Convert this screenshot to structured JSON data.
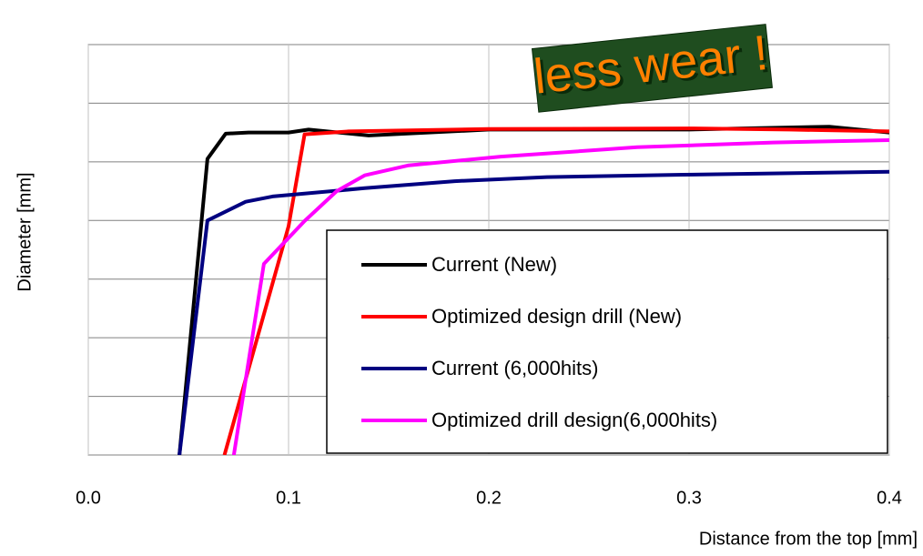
{
  "chart_data": {
    "type": "line",
    "annotation": "less wear !",
    "xlabel": "Distance from the top  [mm]",
    "ylabel": "Diameter [mm]",
    "xlim": [
      0,
      0.4
    ],
    "xticks": [
      {
        "value": 0,
        "label": "0.0"
      },
      0.1,
      0.2,
      0.3,
      0.4
    ],
    "ylim": [
      0,
      7
    ],
    "yticks": [
      0,
      1,
      2,
      3,
      4,
      5,
      6,
      7
    ],
    "grid": true,
    "legend": "lower right",
    "series": [
      {
        "name": "Current (New)",
        "color": "#000000",
        "x": [
          0.0455,
          0.0595,
          0.0686,
          0.08,
          0.1,
          0.11,
          0.14,
          0.2,
          0.3,
          0.37,
          0.4
        ],
        "values": [
          0,
          5.05,
          5.48,
          5.5,
          5.5,
          5.55,
          5.45,
          5.55,
          5.55,
          5.6,
          5.5
        ]
      },
      {
        "name": "Optimized design drill (New)",
        "color": "#ff0000",
        "x": [
          0.068,
          0.1,
          0.108,
          0.13,
          0.2,
          0.3,
          0.35,
          0.4
        ],
        "values": [
          0,
          3.9,
          5.47,
          5.52,
          5.56,
          5.57,
          5.55,
          5.52
        ]
      },
      {
        "name": "Current (6,000hits)",
        "color": "#000080",
        "x": [
          0.0455,
          0.0595,
          0.0786,
          0.092,
          0.138,
          0.183,
          0.229,
          0.297,
          0.4
        ],
        "values": [
          0,
          4.0,
          4.32,
          4.41,
          4.55,
          4.67,
          4.74,
          4.78,
          4.83
        ]
      },
      {
        "name": "Optimized drill design(6,000hits)",
        "color": "#ff00ff",
        "x": [
          0.0727,
          0.0877,
          0.108,
          0.124,
          0.138,
          0.16,
          0.206,
          0.274,
          0.342,
          0.4
        ],
        "values": [
          0,
          3.26,
          3.99,
          4.5,
          4.77,
          4.94,
          5.09,
          5.25,
          5.33,
          5.37
        ]
      }
    ]
  }
}
